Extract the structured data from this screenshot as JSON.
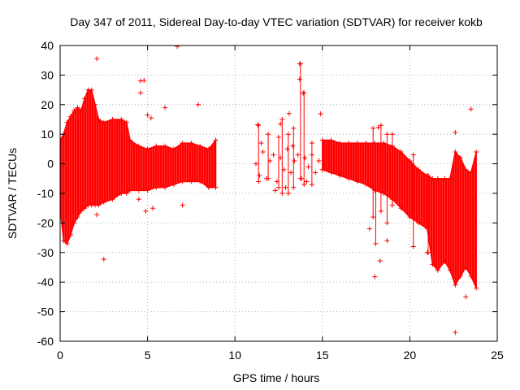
{
  "chart_data": {
    "type": "scatter",
    "title": "Day 347 of 2011, Sidereal Day-to-day VTEC variation (SDTVAR) for receiver kokb",
    "xlabel": "GPS time / hours",
    "ylabel": "SDTVAR / TECUs",
    "xlim": [
      0,
      25
    ],
    "ylim": [
      -60,
      40
    ],
    "xticks": [
      0,
      5,
      10,
      15,
      20,
      25
    ],
    "yticks": [
      -60,
      -50,
      -40,
      -30,
      -20,
      -10,
      0,
      10,
      20,
      30,
      40
    ],
    "grid": true,
    "legend": "none",
    "marker": "+",
    "color": "#ff0000",
    "bands": [
      {
        "x": 0.0,
        "lo": -15,
        "hi": 8
      },
      {
        "x": 0.2,
        "lo": -26,
        "hi": 10
      },
      {
        "x": 0.4,
        "lo": -27,
        "hi": 14
      },
      {
        "x": 0.6,
        "lo": -24,
        "hi": 16
      },
      {
        "x": 0.8,
        "lo": -20,
        "hi": 18
      },
      {
        "x": 1.0,
        "lo": -18,
        "hi": 19
      },
      {
        "x": 1.2,
        "lo": -16,
        "hi": 18
      },
      {
        "x": 1.4,
        "lo": -15,
        "hi": 22
      },
      {
        "x": 1.6,
        "lo": -14,
        "hi": 25
      },
      {
        "x": 1.8,
        "lo": -14,
        "hi": 25
      },
      {
        "x": 2.0,
        "lo": -14,
        "hi": 20
      },
      {
        "x": 2.2,
        "lo": -14,
        "hi": 15
      },
      {
        "x": 2.5,
        "lo": -13,
        "hi": 14
      },
      {
        "x": 3.0,
        "lo": -12,
        "hi": 15
      },
      {
        "x": 3.5,
        "lo": -10,
        "hi": 15
      },
      {
        "x": 3.8,
        "lo": -10,
        "hi": 14
      },
      {
        "x": 4.0,
        "lo": -9,
        "hi": 8
      },
      {
        "x": 4.5,
        "lo": -9,
        "hi": 6
      },
      {
        "x": 5.0,
        "lo": -9,
        "hi": 5
      },
      {
        "x": 5.5,
        "lo": -8,
        "hi": 6
      },
      {
        "x": 6.0,
        "lo": -8,
        "hi": 6
      },
      {
        "x": 6.5,
        "lo": -7,
        "hi": 5
      },
      {
        "x": 7.0,
        "lo": -6,
        "hi": 7
      },
      {
        "x": 7.5,
        "lo": -6,
        "hi": 7
      },
      {
        "x": 8.0,
        "lo": -6,
        "hi": 6
      },
      {
        "x": 8.5,
        "lo": -8,
        "hi": 5
      },
      {
        "x": 8.9,
        "lo": -8,
        "hi": 8
      },
      {
        "x": 15.0,
        "lo": -2,
        "hi": 8
      },
      {
        "x": 15.5,
        "lo": -3,
        "hi": 8
      },
      {
        "x": 16.0,
        "lo": -4,
        "hi": 7
      },
      {
        "x": 16.5,
        "lo": -5,
        "hi": 7
      },
      {
        "x": 17.0,
        "lo": -6,
        "hi": 7
      },
      {
        "x": 17.5,
        "lo": -7,
        "hi": 7
      },
      {
        "x": 18.0,
        "lo": -9,
        "hi": 7
      },
      {
        "x": 18.5,
        "lo": -10,
        "hi": 7
      },
      {
        "x": 19.0,
        "lo": -12,
        "hi": 6
      },
      {
        "x": 19.5,
        "lo": -15,
        "hi": 4
      },
      {
        "x": 20.0,
        "lo": -18,
        "hi": 1
      },
      {
        "x": 20.5,
        "lo": -20,
        "hi": -2
      },
      {
        "x": 21.0,
        "lo": -22,
        "hi": -4
      },
      {
        "x": 21.3,
        "lo": -34,
        "hi": -5
      },
      {
        "x": 21.6,
        "lo": -36,
        "hi": -5
      },
      {
        "x": 22.0,
        "lo": -33,
        "hi": -5
      },
      {
        "x": 22.3,
        "lo": -36,
        "hi": -5
      },
      {
        "x": 22.6,
        "lo": -41,
        "hi": 4
      },
      {
        "x": 22.9,
        "lo": -38,
        "hi": 2
      },
      {
        "x": 23.2,
        "lo": -35,
        "hi": -2
      },
      {
        "x": 23.5,
        "lo": -38,
        "hi": -3
      },
      {
        "x": 23.8,
        "lo": -42,
        "hi": 4
      }
    ],
    "scatter_points": [
      [
        2.1,
        35.5
      ],
      [
        6.7,
        39.7
      ],
      [
        4.6,
        28
      ],
      [
        4.8,
        28.2
      ],
      [
        4.6,
        24
      ],
      [
        6.0,
        19
      ],
      [
        7.9,
        20
      ],
      [
        5.0,
        16.5
      ],
      [
        5.2,
        15.5
      ],
      [
        2.1,
        -17.2
      ],
      [
        2.5,
        -32.3
      ],
      [
        7.0,
        -14
      ],
      [
        4.9,
        -16
      ],
      [
        5.3,
        -15
      ],
      [
        4.5,
        -12
      ],
      [
        13.7,
        33.8
      ],
      [
        13.7,
        28.6
      ],
      [
        13.9,
        23.9
      ],
      [
        14.9,
        16.9
      ],
      [
        13.1,
        17.0
      ],
      [
        12.6,
        13.5
      ],
      [
        11.3,
        13.2
      ],
      [
        18.0,
        -38.2
      ],
      [
        18.3,
        -32.8
      ],
      [
        18.7,
        -26
      ],
      [
        22.6,
        -57
      ],
      [
        23.5,
        18.5
      ],
      [
        22.6,
        10.6
      ],
      [
        18.2,
        12.3
      ],
      [
        21.0,
        -30
      ],
      [
        17.7,
        -22
      ],
      [
        23.2,
        -45
      ]
    ],
    "spikes": [
      [
        11.35,
        -6,
        13
      ],
      [
        11.9,
        -5,
        10
      ],
      [
        12.5,
        -8,
        9
      ],
      [
        12.7,
        -10,
        15
      ],
      [
        13.05,
        -10,
        10
      ],
      [
        13.35,
        -8,
        12
      ],
      [
        13.75,
        -5,
        33.8
      ],
      [
        13.95,
        -7,
        24
      ],
      [
        14.4,
        -7,
        7
      ],
      [
        17.9,
        -18,
        12
      ],
      [
        18.05,
        -27,
        5
      ],
      [
        18.35,
        -16,
        13
      ],
      [
        18.7,
        -20,
        10
      ],
      [
        19.0,
        -14,
        10
      ],
      [
        20.2,
        -28,
        3
      ],
      [
        21.05,
        -30,
        -4
      ]
    ],
    "gap_points": [
      [
        11.2,
        0
      ],
      [
        11.4,
        -4
      ],
      [
        11.6,
        4
      ],
      [
        11.8,
        -5
      ],
      [
        12.0,
        1
      ],
      [
        12.2,
        3
      ],
      [
        12.4,
        -6
      ],
      [
        12.6,
        2
      ],
      [
        12.8,
        -2
      ],
      [
        13.0,
        5
      ],
      [
        13.2,
        -3
      ],
      [
        13.4,
        1
      ],
      [
        13.6,
        3
      ],
      [
        13.8,
        -5
      ],
      [
        14.0,
        2
      ],
      [
        14.2,
        -1
      ],
      [
        14.4,
        3
      ],
      [
        14.6,
        -3
      ],
      [
        14.8,
        1
      ],
      [
        11.5,
        7
      ],
      [
        12.3,
        -9
      ],
      [
        13.3,
        6
      ],
      [
        14.1,
        -6
      ],
      [
        12.9,
        -8
      ]
    ]
  }
}
